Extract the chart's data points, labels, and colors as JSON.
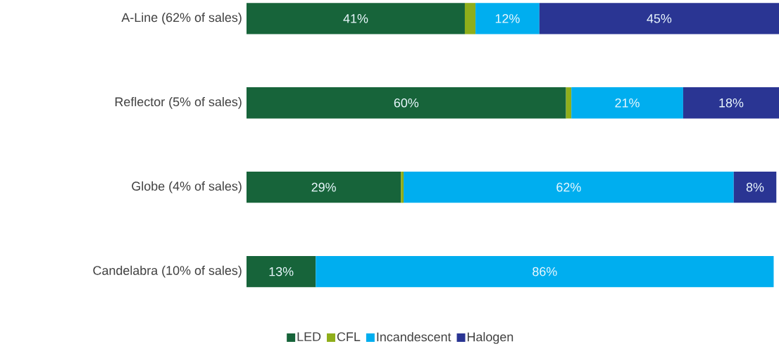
{
  "chart_data": {
    "type": "bar",
    "orientation": "horizontal",
    "stacked": true,
    "categories": [
      "A-Line (62% of sales)",
      "Reflector (5% of sales)",
      "Globe (4% of sales)",
      "Candelabra (10% of sales)"
    ],
    "xlim": [
      0,
      100
    ],
    "tick_labels": "y",
    "legend": "bottom",
    "series": [
      {
        "name": "LED",
        "color": "#17643a",
        "values": [
          41,
          60,
          29,
          13
        ],
        "value_labels": [
          "41%",
          "60%",
          "29%",
          "13%"
        ]
      },
      {
        "name": "CFL",
        "color": "#8fae1b",
        "values": [
          2,
          1,
          0.5,
          null
        ],
        "value_labels": [
          null,
          null,
          null,
          null
        ]
      },
      {
        "name": "Incandescent",
        "color": "#00aeef",
        "values": [
          12,
          21,
          62,
          86
        ],
        "value_labels": [
          "12%",
          "21%",
          "62%",
          "86%"
        ]
      },
      {
        "name": "Halogen",
        "color": "#2a3593",
        "values": [
          45,
          18,
          8,
          null
        ],
        "value_labels": [
          "45%",
          "18%",
          "8%",
          null
        ]
      }
    ]
  }
}
